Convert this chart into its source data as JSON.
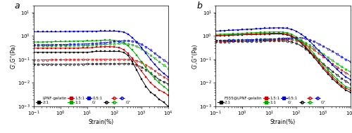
{
  "panel_a": {
    "title": "a",
    "xlabel": "Strain(%)",
    "ylabel": "G',G′′(Pa)",
    "xlim": [
      0.1,
      10000
    ],
    "ylim": [
      0.001,
      20
    ],
    "legend_label": "LPNF-gelatin",
    "ratios": [
      "2:1",
      "1.5:1",
      "1:1",
      "0.5:1"
    ],
    "colors": [
      "#000000",
      "#cc0000",
      "#00aa00",
      "#0000cc"
    ],
    "G_prime": {
      "2:1": {
        "x": [
          0.1,
          0.15,
          0.22,
          0.32,
          0.46,
          0.68,
          1.0,
          1.5,
          2.2,
          3.2,
          4.6,
          6.8,
          10,
          15,
          22,
          32,
          46,
          68,
          100,
          150,
          220,
          320,
          460,
          680,
          1000,
          1500,
          2200,
          3200,
          4600,
          6800,
          10000
        ],
        "y": [
          0.2,
          0.2,
          0.2,
          0.2,
          0.2,
          0.2,
          0.2,
          0.2,
          0.2,
          0.2,
          0.2,
          0.2,
          0.2,
          0.21,
          0.22,
          0.22,
          0.22,
          0.22,
          0.22,
          0.22,
          0.2,
          0.15,
          0.08,
          0.035,
          0.015,
          0.007,
          0.004,
          0.003,
          0.002,
          0.0015,
          0.001
        ]
      },
      "1.5:1": {
        "x": [
          0.1,
          0.15,
          0.22,
          0.32,
          0.46,
          0.68,
          1.0,
          1.5,
          2.2,
          3.2,
          4.6,
          6.8,
          10,
          15,
          22,
          32,
          46,
          68,
          100,
          150,
          220,
          320,
          460,
          680,
          1000,
          1500,
          2200,
          3200,
          4600,
          6800,
          10000
        ],
        "y": [
          0.3,
          0.3,
          0.3,
          0.3,
          0.3,
          0.3,
          0.3,
          0.3,
          0.3,
          0.3,
          0.3,
          0.31,
          0.31,
          0.32,
          0.33,
          0.34,
          0.35,
          0.35,
          0.34,
          0.32,
          0.26,
          0.18,
          0.11,
          0.06,
          0.032,
          0.018,
          0.01,
          0.007,
          0.005,
          0.004,
          0.003
        ]
      },
      "1:1": {
        "x": [
          0.1,
          0.15,
          0.22,
          0.32,
          0.46,
          0.68,
          1.0,
          1.5,
          2.2,
          3.2,
          4.6,
          6.8,
          10,
          15,
          22,
          32,
          46,
          68,
          100,
          150,
          220,
          320,
          460,
          680,
          1000,
          1500,
          2200,
          3200,
          4600,
          6800,
          10000
        ],
        "y": [
          0.55,
          0.55,
          0.55,
          0.56,
          0.56,
          0.57,
          0.57,
          0.58,
          0.58,
          0.59,
          0.6,
          0.6,
          0.61,
          0.62,
          0.63,
          0.65,
          0.66,
          0.66,
          0.65,
          0.6,
          0.5,
          0.38,
          0.25,
          0.15,
          0.08,
          0.045,
          0.025,
          0.015,
          0.01,
          0.007,
          0.005
        ]
      },
      "0.5:1": {
        "x": [
          0.1,
          0.15,
          0.22,
          0.32,
          0.46,
          0.68,
          1.0,
          1.5,
          2.2,
          3.2,
          4.6,
          6.8,
          10,
          15,
          22,
          32,
          46,
          68,
          100,
          150,
          220,
          320,
          460,
          680,
          1000,
          1500,
          2200,
          3200,
          4600,
          6800,
          10000
        ],
        "y": [
          1.5,
          1.5,
          1.5,
          1.5,
          1.5,
          1.5,
          1.52,
          1.53,
          1.54,
          1.55,
          1.55,
          1.56,
          1.57,
          1.58,
          1.59,
          1.6,
          1.6,
          1.6,
          1.6,
          1.58,
          1.45,
          1.2,
          0.85,
          0.55,
          0.32,
          0.18,
          0.1,
          0.06,
          0.038,
          0.025,
          0.018
        ]
      }
    },
    "G_dprime": {
      "2:1": {
        "x": [
          0.1,
          0.15,
          0.22,
          0.32,
          0.46,
          0.68,
          1.0,
          1.5,
          2.2,
          3.2,
          4.6,
          6.8,
          10,
          15,
          22,
          32,
          46,
          68,
          100,
          150,
          220,
          320,
          460,
          680,
          1000,
          1500,
          2200,
          3200,
          4600,
          6800,
          10000
        ],
        "y": [
          0.062,
          0.062,
          0.062,
          0.062,
          0.062,
          0.062,
          0.062,
          0.062,
          0.063,
          0.063,
          0.063,
          0.063,
          0.064,
          0.064,
          0.064,
          0.065,
          0.065,
          0.065,
          0.065,
          0.065,
          0.066,
          0.066,
          0.064,
          0.058,
          0.048,
          0.036,
          0.026,
          0.019,
          0.014,
          0.011,
          0.009
        ]
      },
      "1.5:1": {
        "x": [
          0.1,
          0.15,
          0.22,
          0.32,
          0.46,
          0.68,
          1.0,
          1.5,
          2.2,
          3.2,
          4.6,
          6.8,
          10,
          15,
          22,
          32,
          46,
          68,
          100,
          150,
          220,
          320,
          460,
          680,
          1000,
          1500,
          2200,
          3200,
          4600,
          6800,
          10000
        ],
        "y": [
          0.095,
          0.095,
          0.095,
          0.095,
          0.096,
          0.096,
          0.096,
          0.097,
          0.097,
          0.097,
          0.098,
          0.098,
          0.098,
          0.099,
          0.099,
          0.1,
          0.1,
          0.1,
          0.1,
          0.1,
          0.1,
          0.099,
          0.096,
          0.088,
          0.074,
          0.058,
          0.044,
          0.032,
          0.024,
          0.018,
          0.014
        ]
      },
      "1:1": {
        "x": [
          0.1,
          0.15,
          0.22,
          0.32,
          0.46,
          0.68,
          1.0,
          1.5,
          2.2,
          3.2,
          4.6,
          6.8,
          10,
          15,
          22,
          32,
          46,
          68,
          100,
          150,
          220,
          320,
          460,
          680,
          1000,
          1500,
          2200,
          3200,
          4600,
          6800,
          10000
        ],
        "y": [
          0.38,
          0.38,
          0.38,
          0.38,
          0.38,
          0.39,
          0.39,
          0.39,
          0.39,
          0.4,
          0.4,
          0.4,
          0.4,
          0.41,
          0.42,
          0.43,
          0.44,
          0.45,
          0.46,
          0.48,
          0.48,
          0.46,
          0.42,
          0.36,
          0.28,
          0.21,
          0.15,
          0.11,
          0.078,
          0.057,
          0.042
        ]
      },
      "0.5:1": {
        "x": [
          0.1,
          0.15,
          0.22,
          0.32,
          0.46,
          0.68,
          1.0,
          1.5,
          2.2,
          3.2,
          4.6,
          6.8,
          10,
          15,
          22,
          32,
          46,
          68,
          100,
          150,
          220,
          320,
          460,
          680,
          1000,
          1500,
          2200,
          3200,
          4600,
          6800,
          10000
        ],
        "y": [
          0.42,
          0.42,
          0.42,
          0.42,
          0.42,
          0.43,
          0.43,
          0.43,
          0.44,
          0.44,
          0.45,
          0.45,
          0.46,
          0.47,
          0.48,
          0.5,
          0.52,
          0.54,
          0.57,
          0.6,
          0.62,
          0.62,
          0.6,
          0.54,
          0.44,
          0.34,
          0.25,
          0.18,
          0.13,
          0.095,
          0.07
        ]
      }
    }
  },
  "panel_b": {
    "title": "b",
    "xlabel": "Strain(%)",
    "ylabel": "G',G′′(Pa)",
    "xlim": [
      0.1,
      10000
    ],
    "ylim": [
      0.001,
      20
    ],
    "legend_label": "F555@LPNF-gelatin",
    "ratios": [
      "2:1",
      "1.5:1",
      "1:1",
      "0.5:1"
    ],
    "colors": [
      "#000000",
      "#cc0000",
      "#00aa00",
      "#0000cc"
    ],
    "G_prime": {
      "2:1": {
        "x": [
          0.1,
          0.15,
          0.22,
          0.32,
          0.46,
          0.68,
          1.0,
          1.5,
          2.2,
          3.2,
          4.6,
          6.8,
          10,
          15,
          22,
          32,
          46,
          68,
          100,
          150,
          220,
          320,
          460,
          680,
          1000,
          1500,
          2200,
          3200,
          4600,
          6800,
          10000
        ],
        "y": [
          1.0,
          1.02,
          1.05,
          1.05,
          1.08,
          1.1,
          1.12,
          1.14,
          1.15,
          1.16,
          1.18,
          1.18,
          1.2,
          1.22,
          1.22,
          1.2,
          1.12,
          0.95,
          0.72,
          0.5,
          0.32,
          0.2,
          0.12,
          0.07,
          0.04,
          0.024,
          0.015,
          0.01,
          0.007,
          0.005,
          0.004
        ]
      },
      "1.5:1": {
        "x": [
          0.1,
          0.15,
          0.22,
          0.32,
          0.46,
          0.68,
          1.0,
          1.5,
          2.2,
          3.2,
          4.6,
          6.8,
          10,
          15,
          22,
          32,
          46,
          68,
          100,
          150,
          220,
          320,
          460,
          680,
          1000,
          1500,
          2200,
          3200,
          4600,
          6800,
          10000
        ],
        "y": [
          1.05,
          1.06,
          1.08,
          1.1,
          1.12,
          1.14,
          1.16,
          1.18,
          1.2,
          1.22,
          1.24,
          1.26,
          1.28,
          1.3,
          1.3,
          1.28,
          1.2,
          1.02,
          0.78,
          0.56,
          0.36,
          0.22,
          0.14,
          0.082,
          0.048,
          0.028,
          0.018,
          0.012,
          0.008,
          0.006,
          0.005
        ]
      },
      "1:1": {
        "x": [
          0.1,
          0.15,
          0.22,
          0.32,
          0.46,
          0.68,
          1.0,
          1.5,
          2.2,
          3.2,
          4.6,
          6.8,
          10,
          15,
          22,
          32,
          46,
          68,
          100,
          150,
          220,
          320,
          460,
          680,
          1000,
          1500,
          2200,
          3200,
          4600,
          6800,
          10000
        ],
        "y": [
          1.15,
          1.17,
          1.19,
          1.21,
          1.24,
          1.26,
          1.29,
          1.32,
          1.35,
          1.38,
          1.4,
          1.42,
          1.45,
          1.48,
          1.48,
          1.45,
          1.36,
          1.18,
          0.9,
          0.65,
          0.44,
          0.28,
          0.17,
          0.1,
          0.06,
          0.036,
          0.022,
          0.015,
          0.01,
          0.007,
          0.006
        ]
      },
      "0.5:1": {
        "x": [
          0.1,
          0.15,
          0.22,
          0.32,
          0.46,
          0.68,
          1.0,
          1.5,
          2.2,
          3.2,
          4.6,
          6.8,
          10,
          15,
          22,
          32,
          46,
          68,
          100,
          150,
          220,
          320,
          460,
          680,
          1000,
          1500,
          2200,
          3200,
          4600,
          6800,
          10000
        ],
        "y": [
          1.6,
          1.64,
          1.68,
          1.72,
          1.76,
          1.8,
          1.85,
          1.9,
          1.95,
          2.0,
          2.05,
          2.1,
          2.15,
          2.18,
          2.2,
          2.18,
          2.1,
          1.9,
          1.58,
          1.2,
          0.86,
          0.58,
          0.38,
          0.24,
          0.15,
          0.092,
          0.058,
          0.038,
          0.026,
          0.018,
          0.014
        ]
      }
    },
    "G_dprime": {
      "2:1": {
        "x": [
          0.1,
          0.15,
          0.22,
          0.32,
          0.46,
          0.68,
          1.0,
          1.5,
          2.2,
          3.2,
          4.6,
          6.8,
          10,
          15,
          22,
          32,
          46,
          68,
          100,
          150,
          220,
          320,
          460,
          680,
          1000,
          1500,
          2200,
          3200,
          4600,
          6800,
          10000
        ],
        "y": [
          0.55,
          0.55,
          0.56,
          0.56,
          0.57,
          0.57,
          0.58,
          0.58,
          0.59,
          0.6,
          0.6,
          0.61,
          0.62,
          0.62,
          0.62,
          0.62,
          0.6,
          0.55,
          0.48,
          0.38,
          0.28,
          0.2,
          0.14,
          0.096,
          0.064,
          0.044,
          0.031,
          0.022,
          0.016,
          0.012,
          0.009
        ]
      },
      "1.5:1": {
        "x": [
          0.1,
          0.15,
          0.22,
          0.32,
          0.46,
          0.68,
          1.0,
          1.5,
          2.2,
          3.2,
          4.6,
          6.8,
          10,
          15,
          22,
          32,
          46,
          68,
          100,
          150,
          220,
          320,
          460,
          680,
          1000,
          1500,
          2200,
          3200,
          4600,
          6800,
          10000
        ],
        "y": [
          0.6,
          0.6,
          0.6,
          0.61,
          0.61,
          0.62,
          0.63,
          0.63,
          0.64,
          0.65,
          0.65,
          0.66,
          0.67,
          0.68,
          0.69,
          0.7,
          0.7,
          0.68,
          0.63,
          0.55,
          0.44,
          0.34,
          0.25,
          0.18,
          0.13,
          0.092,
          0.066,
          0.048,
          0.036,
          0.027,
          0.021
        ]
      },
      "1:1": {
        "x": [
          0.1,
          0.15,
          0.22,
          0.32,
          0.46,
          0.68,
          1.0,
          1.5,
          2.2,
          3.2,
          4.6,
          6.8,
          10,
          15,
          22,
          32,
          46,
          68,
          100,
          150,
          220,
          320,
          460,
          680,
          1000,
          1500,
          2200,
          3200,
          4600,
          6800,
          10000
        ],
        "y": [
          0.65,
          0.65,
          0.65,
          0.66,
          0.66,
          0.67,
          0.68,
          0.68,
          0.69,
          0.7,
          0.71,
          0.72,
          0.73,
          0.74,
          0.75,
          0.76,
          0.76,
          0.75,
          0.7,
          0.62,
          0.52,
          0.41,
          0.31,
          0.23,
          0.17,
          0.12,
          0.09,
          0.067,
          0.05,
          0.038,
          0.03
        ]
      },
      "0.5:1": {
        "x": [
          0.1,
          0.15,
          0.22,
          0.32,
          0.46,
          0.68,
          1.0,
          1.5,
          2.2,
          3.2,
          4.6,
          6.8,
          10,
          15,
          22,
          32,
          46,
          68,
          100,
          150,
          220,
          320,
          460,
          680,
          1000,
          1500,
          2200,
          3200,
          4600,
          6800,
          10000
        ],
        "y": [
          0.65,
          0.65,
          0.65,
          0.66,
          0.66,
          0.67,
          0.68,
          0.68,
          0.69,
          0.7,
          0.71,
          0.72,
          0.73,
          0.74,
          0.76,
          0.78,
          0.8,
          0.82,
          0.85,
          0.84,
          0.78,
          0.68,
          0.57,
          0.46,
          0.36,
          0.28,
          0.22,
          0.17,
          0.13,
          0.1,
          0.082
        ]
      }
    }
  }
}
